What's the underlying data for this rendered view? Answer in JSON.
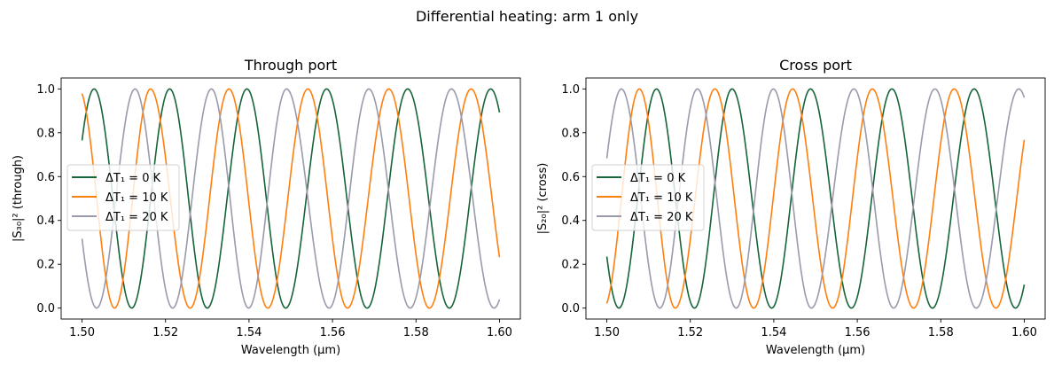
{
  "chart_data": {
    "title": "Differential heating: arm 1 only",
    "colors": {
      "dT0": "#17643a",
      "dT10": "#ff7f0e",
      "dT20": "#9a9aab"
    },
    "subplots": [
      {
        "type": "line",
        "title": "Through port",
        "xlabel": "Wavelength (µm)",
        "ylabel": "|S₃₀|² (through)",
        "xlim": [
          1.495,
          1.605
        ],
        "ylim": [
          -0.05,
          1.05
        ],
        "xticks": [
          "1.50",
          "1.52",
          "1.54",
          "1.56",
          "1.58",
          "1.60"
        ],
        "yticks": [
          "0.0",
          "0.2",
          "0.4",
          "0.6",
          "0.8",
          "1.0"
        ],
        "grid": false,
        "legend_placement": "center-left",
        "x_range": [
          1.5,
          1.6
        ],
        "series": [
          {
            "name": "ΔT₁ = 0 K",
            "color_key": "dT0",
            "y_start": 0.76,
            "y_end": 0.93,
            "peaks": [
              1.5029,
              1.521,
              1.5395,
              1.5586,
              1.578,
              1.5979
            ],
            "troughs": [
              1.5119,
              1.53,
              1.5488,
              1.5683,
              1.588
            ]
          },
          {
            "name": "ΔT₁ = 10 K",
            "color_key": "dT10",
            "y_start": 0.95,
            "y_end": 0.29,
            "peaks": [
              1.5164,
              1.5352,
              1.5541,
              1.5735,
              1.5932
            ],
            "troughs": [
              1.5078,
              1.5259,
              1.5445,
              1.5636,
              1.5832
            ]
          },
          {
            "name": "ΔT₁ = 20 K",
            "color_key": "dT20",
            "y_start": 0.34,
            "y_end": 0.03,
            "peaks": [
              1.5127,
              1.531,
              1.549,
              1.5687,
              1.5885
            ],
            "troughs": [
              1.5035,
              1.5217,
              1.5399,
              1.5592,
              1.5786,
              1.5987
            ]
          }
        ]
      },
      {
        "type": "line",
        "title": "Cross port",
        "xlabel": "Wavelength (µm)",
        "ylabel": "|S₂₀|² (cross)",
        "xlim": [
          1.495,
          1.605
        ],
        "ylim": [
          -0.05,
          1.05
        ],
        "xticks": [
          "1.50",
          "1.52",
          "1.54",
          "1.56",
          "1.58",
          "1.60"
        ],
        "yticks": [
          "0.0",
          "0.2",
          "0.4",
          "0.6",
          "0.8",
          "1.0"
        ],
        "grid": false,
        "legend_placement": "center-left",
        "x_range": [
          1.5,
          1.6
        ],
        "series": [
          {
            "name": "ΔT₁ = 0 K",
            "color_key": "dT0",
            "y_start": 0.24,
            "y_end": 0.07,
            "peaks": [
              1.5119,
              1.53,
              1.5488,
              1.5683,
              1.588
            ],
            "troughs": [
              1.5029,
              1.521,
              1.5395,
              1.5586,
              1.578,
              1.5979
            ]
          },
          {
            "name": "ΔT₁ = 10 K",
            "color_key": "dT10",
            "y_start": 0.05,
            "y_end": 0.71,
            "peaks": [
              1.5078,
              1.5259,
              1.5445,
              1.5636,
              1.5832
            ],
            "troughs": [
              1.5164,
              1.5352,
              1.5541,
              1.5735,
              1.5932
            ]
          },
          {
            "name": "ΔT₁ = 20 K",
            "color_key": "dT20",
            "y_start": 0.66,
            "y_end": 0.97,
            "peaks": [
              1.5035,
              1.5217,
              1.5399,
              1.5592,
              1.5786,
              1.5987
            ],
            "troughs": [
              1.5127,
              1.531,
              1.549,
              1.5687,
              1.5885
            ]
          }
        ]
      }
    ]
  }
}
